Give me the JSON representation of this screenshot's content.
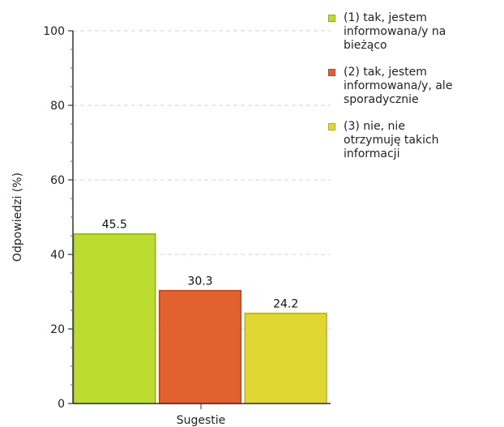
{
  "chart_data": {
    "type": "bar",
    "xlabel": "Sugestie",
    "ylabel": "Odpowiedzi (%)",
    "ylim": [
      0,
      100
    ],
    "yticks": [
      0,
      20,
      40,
      60,
      80,
      100
    ],
    "grid": true,
    "legend_position": "right",
    "categories": [
      "Sugestie"
    ],
    "series": [
      {
        "name": "(1) tak, jestem\ninformowana/y na\nbieżąco",
        "value": 45.5,
        "label": "45.5",
        "color": "#bcdc2f",
        "border": "#8fac1c"
      },
      {
        "name": "(2) tak, jestem\ninformowana/y, ale\nsporadycznie",
        "value": 30.3,
        "label": "30.3",
        "color": "#e2612e",
        "border": "#b7441a"
      },
      {
        "name": "(3) nie, nie\notrzymuję takich\ninformacji",
        "value": 24.2,
        "label": "24.2",
        "color": "#e1d733",
        "border": "#b8ad1a"
      }
    ]
  }
}
